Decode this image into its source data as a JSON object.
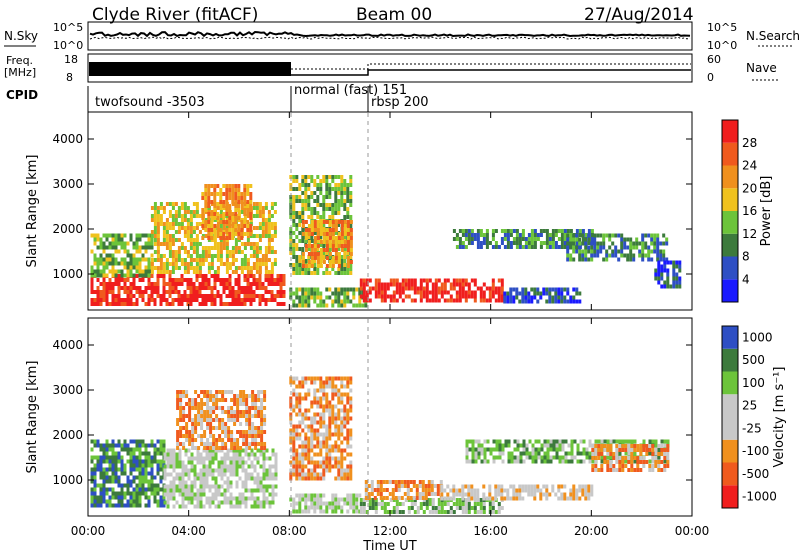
{
  "header": {
    "station": "Clyde River (fitACF)",
    "beam": "Beam 00",
    "date": "27/Aug/2014"
  },
  "top_panels": {
    "nsky_label": "N.Sky",
    "nsky_ticks": [
      "10^5",
      "10^0"
    ],
    "nsearch_label": "N.Search",
    "freq_label_line1": "Freq.",
    "freq_label_line2": "[MHz]",
    "freq_ticks": [
      "18",
      "8"
    ],
    "nave_label": "Nave",
    "nave_ticks": [
      "60",
      "0"
    ],
    "cpid_label": "CPID",
    "cpid_segments": [
      {
        "label": "twofsound -3503",
        "start_hour": 0
      },
      {
        "label": "normal (fast) 151",
        "start_hour": 8
      },
      {
        "label": "rbsp 200",
        "start_hour": 10.5
      }
    ]
  },
  "colors": {
    "power": [
      "#1a1aff",
      "#2e4fc4",
      "#3c7a3c",
      "#6cc43a",
      "#f0c21e",
      "#f0901e",
      "#f05a1e",
      "#f01e1e"
    ],
    "velocity": [
      "#f01e1e",
      "#f05a1e",
      "#f0901e",
      "#c8c8c8",
      "#c8c8c8",
      "#6cc43a",
      "#3c7a3c",
      "#2e4fc4"
    ]
  },
  "chart_data": [
    {
      "type": "heatmap",
      "ylabel": "Slant Range [km]",
      "xlabel": "",
      "ylim": [
        200,
        4600
      ],
      "xlim": [
        0,
        24
      ],
      "yticks": [
        "1000",
        "2000",
        "3000",
        "4000"
      ],
      "colorbar_label": "Power [dB]",
      "colorbar_ticks": [
        "4",
        "8",
        "12",
        "16",
        "20",
        "24",
        "28"
      ],
      "regions": [
        {
          "t0": 0.1,
          "t1": 7.8,
          "r0": 300,
          "r1": 1000,
          "level": 7
        },
        {
          "t0": 0.1,
          "t1": 2.5,
          "r0": 1000,
          "r1": 1900,
          "level": 3
        },
        {
          "t0": 2.5,
          "t1": 7.5,
          "r0": 1000,
          "r1": 2600,
          "level": 4
        },
        {
          "t0": 4.5,
          "t1": 6.5,
          "r0": 1800,
          "r1": 3000,
          "level": 5
        },
        {
          "t0": 8,
          "t1": 10.5,
          "r0": 1000,
          "r1": 3200,
          "level": 3
        },
        {
          "t0": 8.5,
          "t1": 10.5,
          "r0": 1200,
          "r1": 2200,
          "level": 5
        },
        {
          "t0": 8,
          "t1": 11,
          "r0": 300,
          "r1": 700,
          "level": 3
        },
        {
          "t0": 10.8,
          "t1": 16.5,
          "r0": 400,
          "r1": 900,
          "level": 7
        },
        {
          "t0": 16.5,
          "t1": 19.5,
          "r0": 400,
          "r1": 700,
          "level": 1
        },
        {
          "t0": 14.5,
          "t1": 20,
          "r0": 1600,
          "r1": 2000,
          "level": 2
        },
        {
          "t0": 19,
          "t1": 23,
          "r0": 1300,
          "r1": 1900,
          "level": 2
        },
        {
          "t0": 22.5,
          "t1": 23.5,
          "r0": 700,
          "r1": 1300,
          "level": 1
        }
      ]
    },
    {
      "type": "heatmap",
      "ylabel": "Slant Range [km]",
      "xlabel": "Time UT",
      "ylim": [
        200,
        4600
      ],
      "xlim": [
        0,
        24
      ],
      "yticks": [
        "1000",
        "2000",
        "3000",
        "4000"
      ],
      "xticks": [
        "00:00",
        "04:00",
        "08:00",
        "12:00",
        "16:00",
        "20:00",
        "00:00"
      ],
      "colorbar_label": "Velocity [m s⁻¹]",
      "colorbar_ticks": [
        "1000",
        "500",
        "100",
        "25",
        "-25",
        "-100",
        "-500",
        "-1000"
      ],
      "regions": [
        {
          "t0": 0.1,
          "t1": 3,
          "r0": 400,
          "r1": 1900,
          "level": 6
        },
        {
          "t0": 3,
          "t1": 7.5,
          "r0": 400,
          "r1": 1700,
          "level": 4
        },
        {
          "t0": 3.5,
          "t1": 7,
          "r0": 1700,
          "r1": 3000,
          "level": 2
        },
        {
          "t0": 8,
          "t1": 10.5,
          "r0": 1000,
          "r1": 3300,
          "level": 2
        },
        {
          "t0": 8,
          "t1": 10.8,
          "r0": 300,
          "r1": 700,
          "level": 4
        },
        {
          "t0": 10.8,
          "t1": 16.5,
          "r0": 300,
          "r1": 600,
          "level": 5
        },
        {
          "t0": 11,
          "t1": 14,
          "r0": 600,
          "r1": 1000,
          "level": 2
        },
        {
          "t0": 14,
          "t1": 20,
          "r0": 600,
          "r1": 900,
          "level": 3
        },
        {
          "t0": 15,
          "t1": 23,
          "r0": 1400,
          "r1": 1900,
          "level": 5
        },
        {
          "t0": 20,
          "t1": 23,
          "r0": 1200,
          "r1": 1800,
          "level": 2
        }
      ]
    }
  ]
}
